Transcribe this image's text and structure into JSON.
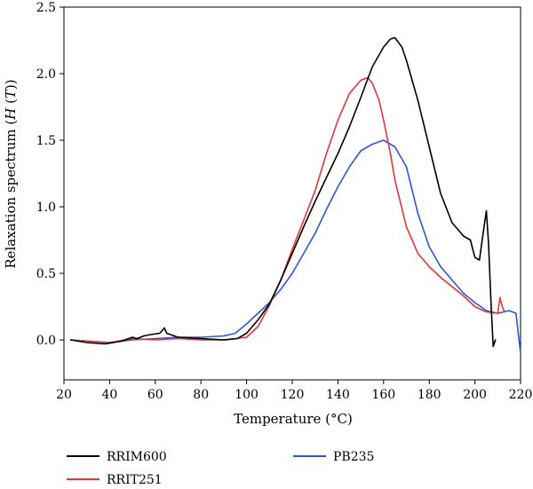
{
  "chart_data": {
    "type": "line",
    "title": "",
    "xlabel": "Temperature (°C)",
    "ylabel_main": "Relaxation spectrum (",
    "ylabel_italic": "H",
    "ylabel_mid": " (",
    "ylabel_italic2": "T",
    "ylabel_end": "))",
    "xlim": [
      20,
      220
    ],
    "ylim": [
      -0.3,
      2.5
    ],
    "x_ticks": [
      "20",
      "40",
      "60",
      "80",
      "100",
      "120",
      "140",
      "160",
      "180",
      "200",
      "220"
    ],
    "y_ticks": [
      "0.0",
      "0.5",
      "1.0",
      "1.5",
      "2.0",
      "2.5"
    ],
    "legend_position": "bottom",
    "grid": false,
    "series": [
      {
        "name": "RRIM600",
        "color": "#000000",
        "x": [
          23,
          30,
          38,
          45,
          50,
          52,
          55,
          58,
          62,
          64,
          65,
          70,
          80,
          90,
          96,
          100,
          105,
          110,
          115,
          120,
          125,
          130,
          135,
          140,
          145,
          150,
          155,
          160,
          163,
          165,
          168,
          170,
          175,
          180,
          185,
          190,
          195,
          198,
          200,
          202,
          204,
          205,
          206,
          207,
          208,
          209
        ],
        "y": [
          0.0,
          -0.02,
          -0.03,
          -0.01,
          0.02,
          0.01,
          0.03,
          0.04,
          0.05,
          0.09,
          0.05,
          0.02,
          0.01,
          0.0,
          0.01,
          0.05,
          0.15,
          0.27,
          0.45,
          0.65,
          0.85,
          1.04,
          1.22,
          1.4,
          1.6,
          1.82,
          2.05,
          2.2,
          2.26,
          2.27,
          2.2,
          2.1,
          1.8,
          1.45,
          1.1,
          0.88,
          0.78,
          0.75,
          0.62,
          0.6,
          0.85,
          0.97,
          0.72,
          0.3,
          -0.05,
          0.0
        ]
      },
      {
        "name": "RRIT251",
        "color": "#e0373b",
        "x": [
          23,
          40,
          50,
          60,
          70,
          80,
          90,
          100,
          105,
          110,
          115,
          120,
          125,
          130,
          135,
          140,
          145,
          150,
          153,
          155,
          158,
          160,
          163,
          165,
          170,
          175,
          180,
          185,
          190,
          195,
          200,
          205,
          210,
          211,
          212,
          213
        ],
        "y": [
          0.0,
          -0.02,
          0.01,
          0.0,
          0.01,
          0.0,
          0.0,
          0.02,
          0.1,
          0.26,
          0.45,
          0.68,
          0.9,
          1.12,
          1.4,
          1.65,
          1.85,
          1.95,
          1.97,
          1.93,
          1.8,
          1.65,
          1.4,
          1.2,
          0.85,
          0.65,
          0.55,
          0.47,
          0.4,
          0.33,
          0.25,
          0.21,
          0.2,
          0.32,
          0.25,
          0.21
        ]
      },
      {
        "name": "PB235",
        "color": "#2b58d6",
        "x": [
          23,
          40,
          50,
          60,
          70,
          80,
          90,
          95,
          100,
          105,
          110,
          115,
          120,
          125,
          130,
          135,
          140,
          145,
          150,
          155,
          160,
          165,
          170,
          175,
          180,
          185,
          190,
          195,
          200,
          205,
          210,
          215,
          218,
          219,
          220
        ],
        "y": [
          0.0,
          -0.02,
          0.0,
          0.01,
          0.02,
          0.02,
          0.03,
          0.05,
          0.12,
          0.2,
          0.28,
          0.38,
          0.5,
          0.65,
          0.8,
          0.98,
          1.15,
          1.3,
          1.42,
          1.47,
          1.5,
          1.45,
          1.3,
          0.95,
          0.7,
          0.55,
          0.45,
          0.35,
          0.28,
          0.22,
          0.2,
          0.22,
          0.2,
          0.05,
          -0.1
        ]
      }
    ]
  }
}
